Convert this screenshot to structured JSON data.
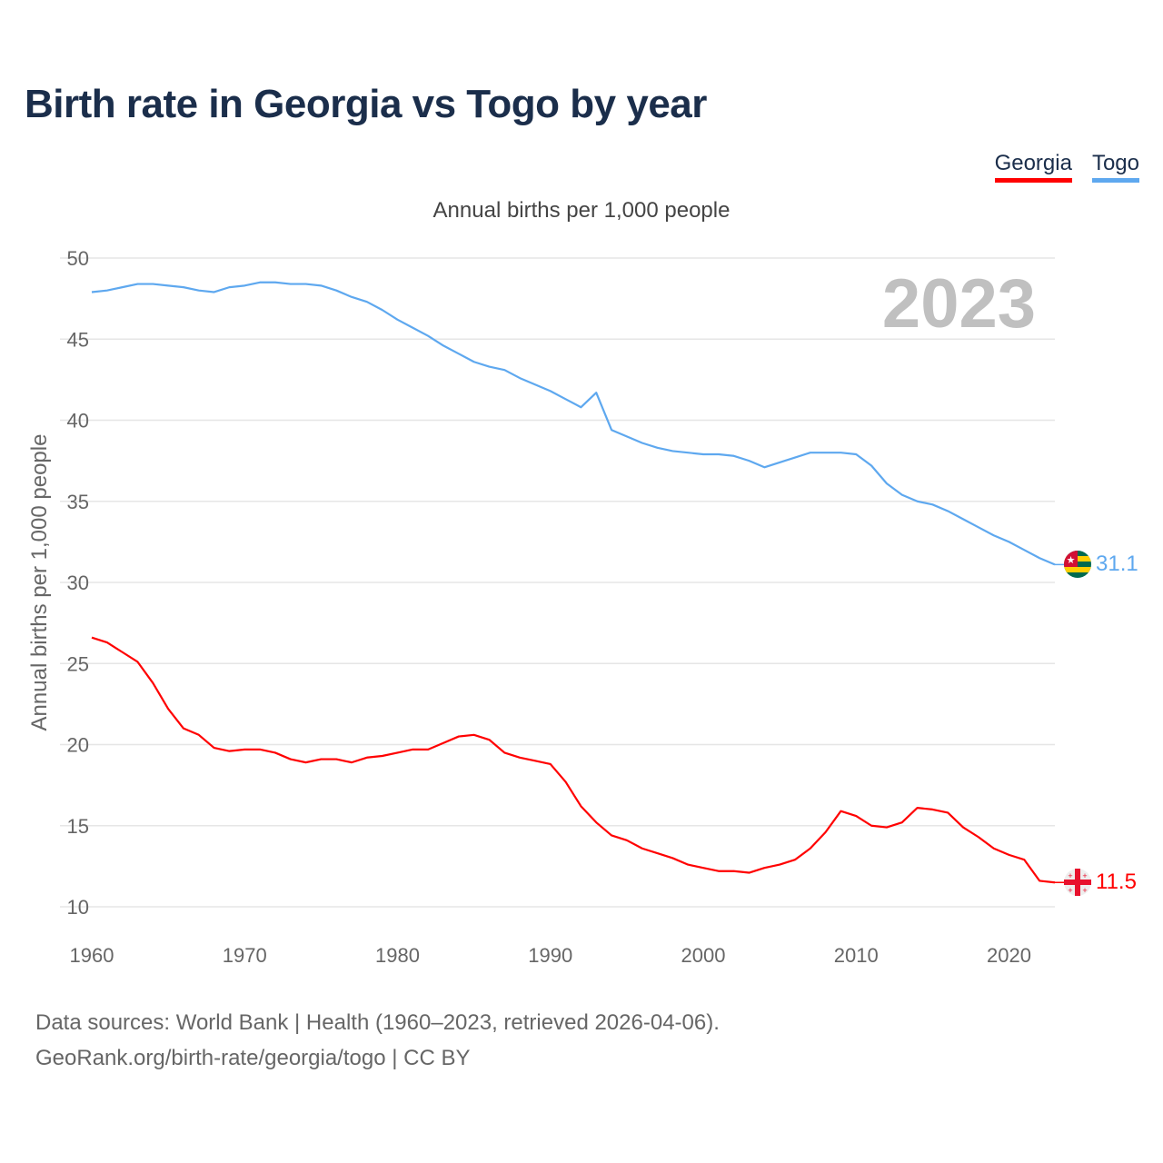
{
  "title": "Birth rate in Georgia vs Togo by year",
  "legend": [
    {
      "label": "Georgia",
      "color": "#ff0000"
    },
    {
      "label": "Togo",
      "color": "#5ea8ef"
    }
  ],
  "subtitle": "Annual births per 1,000 people",
  "year_label": "2023",
  "source_line1": "Data sources: World Bank | Health (1960–2023, retrieved 2026-04-06).",
  "source_line2": "GeoRank.org/birth-rate/georgia/togo | CC BY",
  "chart_data": {
    "type": "line",
    "title": "Birth rate in Georgia vs Togo by year",
    "xlabel": "",
    "ylabel": "Annual births per 1,000 people",
    "xlim": [
      1960,
      2023
    ],
    "ylim": [
      10,
      50
    ],
    "x_ticks": [
      "1960",
      "1970",
      "1980",
      "1990",
      "2000",
      "2010",
      "2020"
    ],
    "y_ticks": [
      "10",
      "15",
      "20",
      "25",
      "30",
      "35",
      "40",
      "45",
      "50"
    ],
    "grid": true,
    "legend_position": "top-right",
    "x": [
      1960,
      1961,
      1962,
      1963,
      1964,
      1965,
      1966,
      1967,
      1968,
      1969,
      1970,
      1971,
      1972,
      1973,
      1974,
      1975,
      1976,
      1977,
      1978,
      1979,
      1980,
      1981,
      1982,
      1983,
      1984,
      1985,
      1986,
      1987,
      1988,
      1989,
      1990,
      1991,
      1992,
      1993,
      1994,
      1995,
      1996,
      1997,
      1998,
      1999,
      2000,
      2001,
      2002,
      2003,
      2004,
      2005,
      2006,
      2007,
      2008,
      2009,
      2010,
      2011,
      2012,
      2013,
      2014,
      2015,
      2016,
      2017,
      2018,
      2019,
      2020,
      2021,
      2022,
      2023
    ],
    "series": [
      {
        "name": "Togo",
        "color": "#5ea8ef",
        "end_label": "31.1",
        "values": [
          47.9,
          48.0,
          48.2,
          48.4,
          48.4,
          48.3,
          48.2,
          48.0,
          47.9,
          48.2,
          48.3,
          48.5,
          48.5,
          48.4,
          48.4,
          48.3,
          48.0,
          47.6,
          47.3,
          46.8,
          46.2,
          45.7,
          45.2,
          44.6,
          44.1,
          43.6,
          43.3,
          43.1,
          42.6,
          42.2,
          41.8,
          41.3,
          40.8,
          41.7,
          39.4,
          39.0,
          38.6,
          38.3,
          38.1,
          38.0,
          37.9,
          37.9,
          37.8,
          37.5,
          37.1,
          37.4,
          37.7,
          38.0,
          38.0,
          38.0,
          37.9,
          37.2,
          36.1,
          35.4,
          35.0,
          34.8,
          34.4,
          33.9,
          33.4,
          32.9,
          32.5,
          32.0,
          31.5,
          31.1
        ]
      },
      {
        "name": "Georgia",
        "color": "#ff0000",
        "end_label": "11.5",
        "values": [
          26.6,
          26.3,
          25.7,
          25.1,
          23.8,
          22.2,
          21.0,
          20.6,
          19.8,
          19.6,
          19.7,
          19.7,
          19.5,
          19.1,
          18.9,
          19.1,
          19.1,
          18.9,
          19.2,
          19.3,
          19.5,
          19.7,
          19.7,
          20.1,
          20.5,
          20.6,
          20.3,
          19.5,
          19.2,
          19.0,
          18.8,
          17.7,
          16.2,
          15.2,
          14.4,
          14.1,
          13.6,
          13.3,
          13.0,
          12.6,
          12.4,
          12.2,
          12.2,
          12.1,
          12.4,
          12.6,
          12.9,
          13.6,
          14.6,
          15.9,
          15.6,
          15.0,
          14.9,
          15.2,
          16.1,
          16.0,
          15.8,
          14.9,
          14.3,
          13.6,
          13.2,
          12.9,
          11.6,
          11.5
        ]
      }
    ]
  }
}
